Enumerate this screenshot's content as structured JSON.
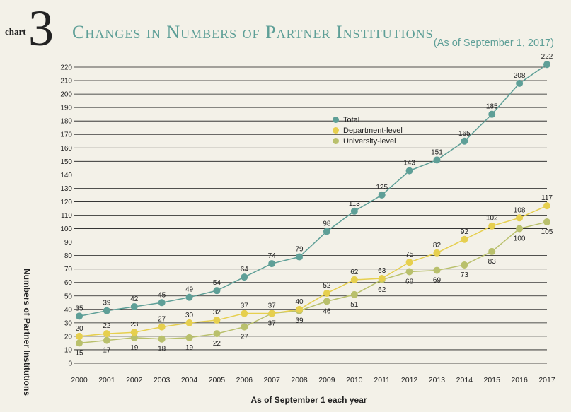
{
  "header": {
    "chart_label": "chart",
    "chart_number": "3",
    "title": "Changes in Numbers of Partner Institutions",
    "subtitle": "(As of September 1, 2017)"
  },
  "chart_data": {
    "type": "line",
    "title": "Changes in Numbers of Partner Institutions",
    "subtitle": "(As of September 1, 2017)",
    "xlabel": "As of September 1 each year",
    "ylabel": "Numbers of Partner Institutions",
    "x": [
      "2000",
      "2001",
      "2002",
      "2003",
      "2004",
      "2005",
      "2006",
      "2007",
      "2008",
      "2009",
      "2010",
      "2011",
      "2012",
      "2013",
      "2014",
      "2015",
      "2016",
      "2017"
    ],
    "ylim": [
      0,
      220
    ],
    "yticks": [
      0,
      10,
      20,
      30,
      40,
      50,
      60,
      70,
      80,
      90,
      100,
      110,
      120,
      130,
      140,
      150,
      160,
      170,
      180,
      190,
      200,
      210,
      220
    ],
    "grid": true,
    "legend_position": "center",
    "series": [
      {
        "name": "Total",
        "color": "#5e9f97",
        "label_position": "above",
        "values": [
          35,
          39,
          42,
          45,
          49,
          54,
          64,
          74,
          79,
          98,
          113,
          125,
          143,
          151,
          165,
          185,
          208,
          222
        ]
      },
      {
        "name": "Department-level",
        "color": "#e6cf4e",
        "label_position": "above",
        "values": [
          20,
          22,
          23,
          27,
          30,
          32,
          37,
          37,
          40,
          52,
          62,
          63,
          75,
          82,
          92,
          102,
          108,
          117
        ]
      },
      {
        "name": "University-level",
        "color": "#b9c06c",
        "label_position": "below",
        "values": [
          15,
          17,
          19,
          18,
          19,
          22,
          27,
          37,
          39,
          46,
          51,
          62,
          68,
          69,
          73,
          83,
          100,
          105
        ]
      }
    ]
  }
}
